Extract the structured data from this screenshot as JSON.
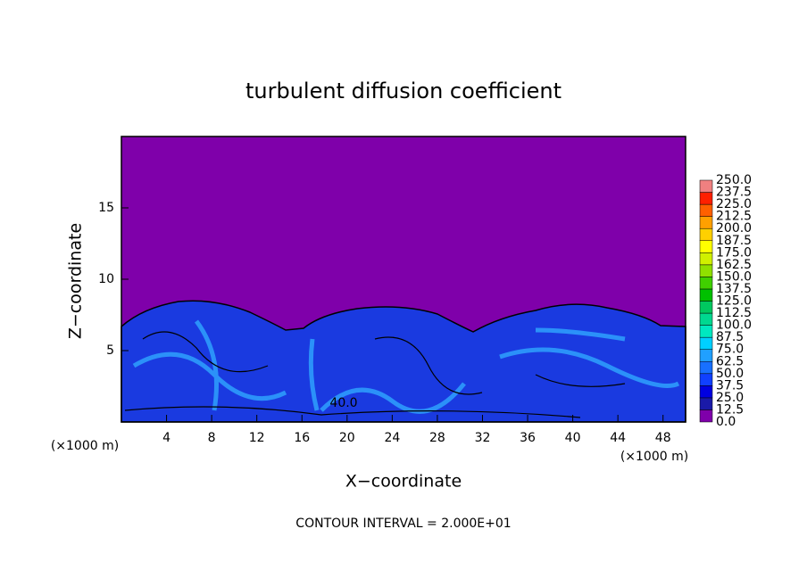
{
  "chart_data": {
    "type": "contour",
    "title": "turbulent diffusion coefficient",
    "x_label": "X−coordinate",
    "y_label": "Z−coordinate",
    "x_unit_left": "(×1000 m)",
    "x_unit_right": "(×1000 m)",
    "footer": "CONTOUR INTERVAL = 2.000E+01",
    "annotations": [
      "40.0"
    ],
    "xlim": [
      0,
      50
    ],
    "xticks": [
      4,
      8,
      12,
      16,
      20,
      24,
      28,
      32,
      36,
      40,
      44,
      48
    ],
    "ylim": [
      0,
      20
    ],
    "yticks": [
      5,
      10,
      15
    ],
    "colorbar": {
      "ticks": [
        {
          "value": 0,
          "label": "0.0"
        },
        12.5,
        {
          "value": 25,
          "label": "25.0"
        },
        37.5,
        {
          "value": 50,
          "label": "50.0"
        },
        62.5,
        {
          "value": 75,
          "label": "75.0"
        },
        87.5,
        {
          "value": 100,
          "label": "100.0"
        },
        112.5,
        {
          "value": 125,
          "label": "125.0"
        },
        137.5,
        {
          "value": 150,
          "label": "150.0"
        },
        162.5,
        {
          "value": 175,
          "label": "175.0"
        },
        187.5,
        {
          "value": 200,
          "label": "200.0"
        },
        212.5,
        {
          "value": 225,
          "label": "225.0"
        },
        237.5,
        {
          "value": 250,
          "label": "250.0"
        }
      ],
      "colors": [
        "#7f00aa",
        "#1a1aa8",
        "#0000e0",
        "#1040ff",
        "#1870ff",
        "#20a0ff",
        "#00d0ff",
        "#00e8c0",
        "#00d890",
        "#00c860",
        "#00c000",
        "#40d000",
        "#90e000",
        "#d0f000",
        "#ffff00",
        "#ffd000",
        "#ffa000",
        "#ff6000",
        "#ff2000",
        "#f08080"
      ]
    }
  }
}
